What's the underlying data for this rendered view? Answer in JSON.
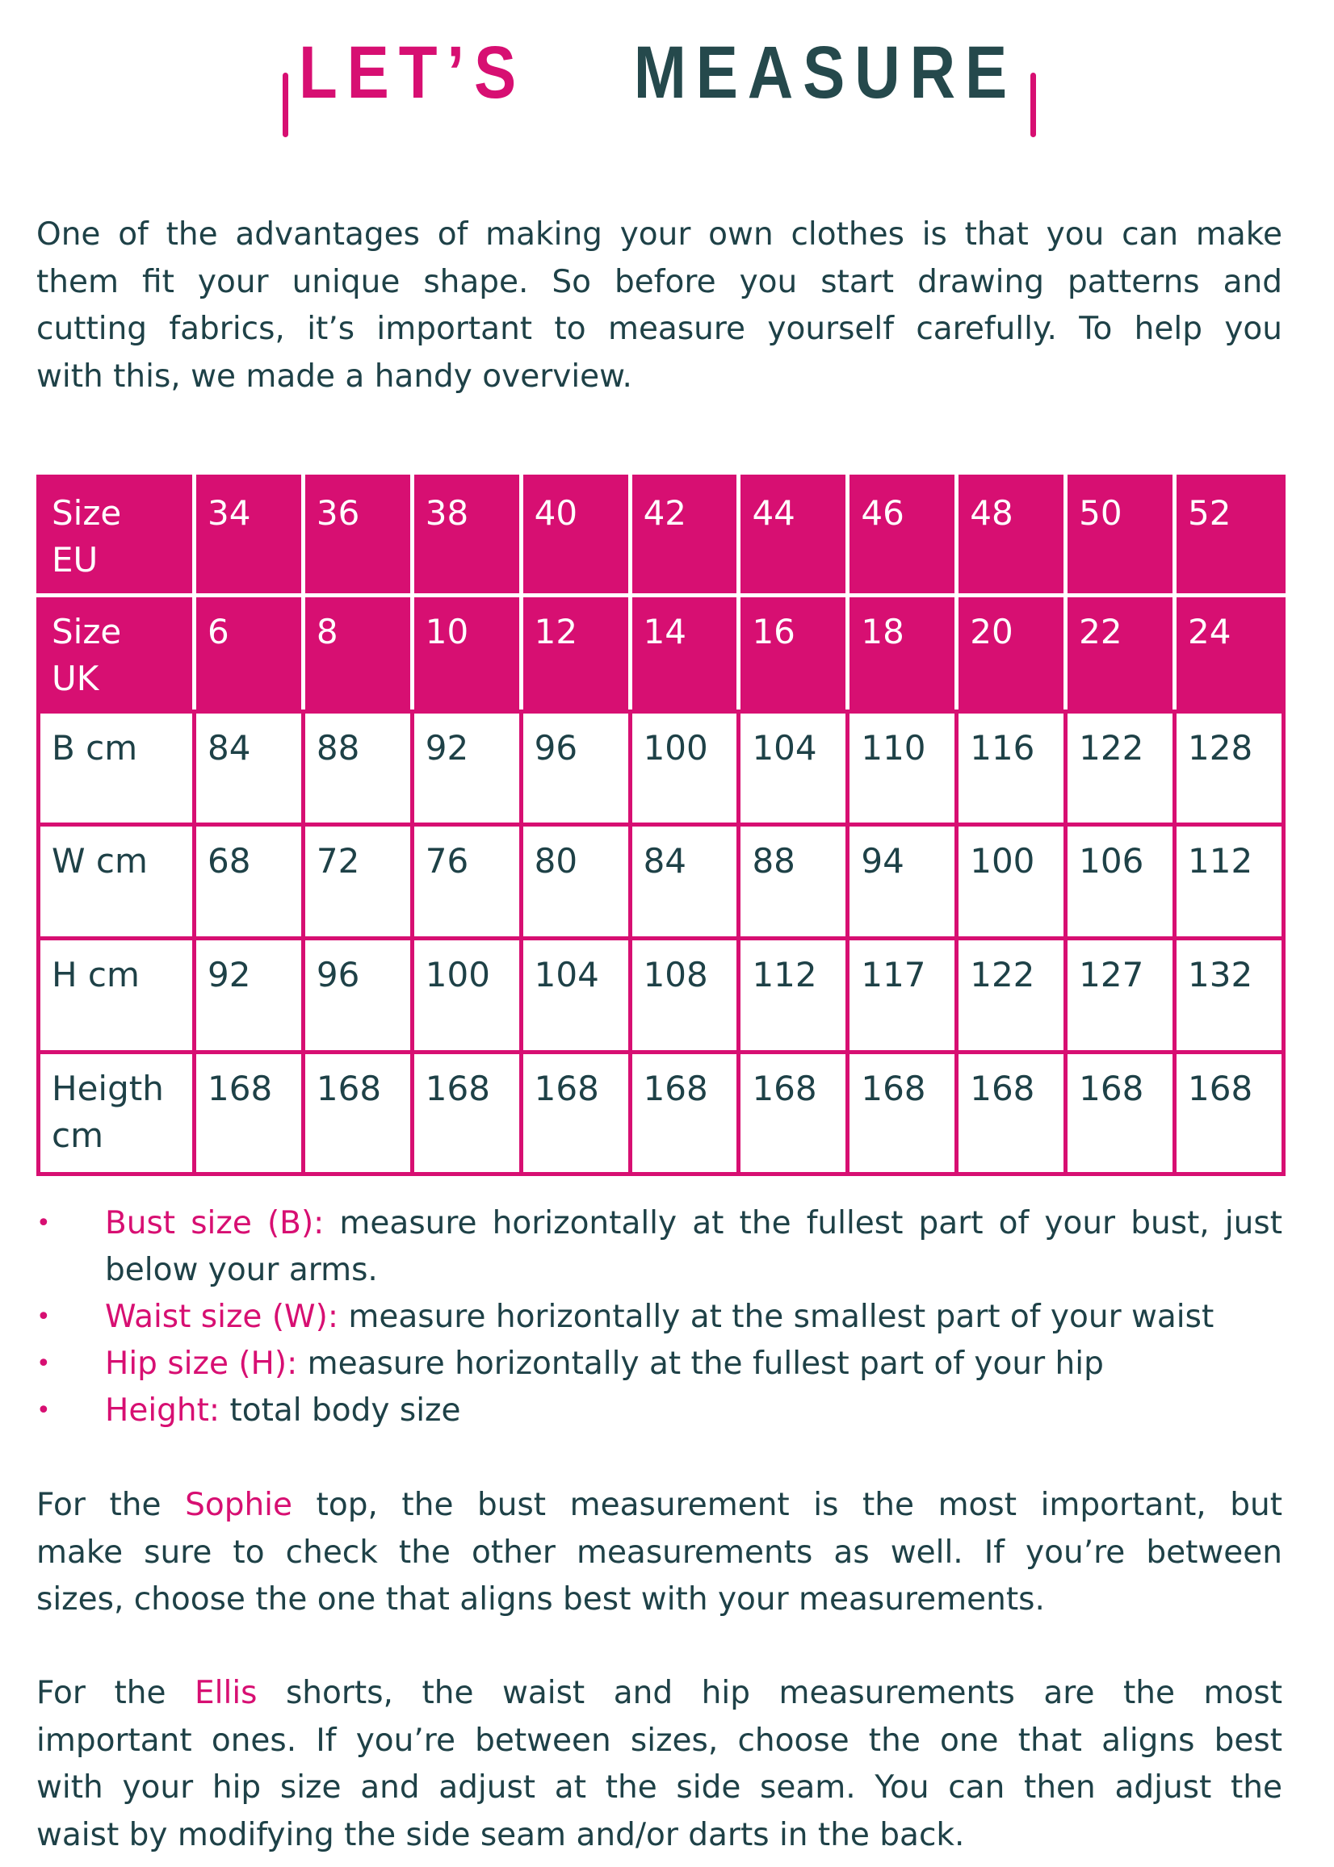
{
  "colors": {
    "accent": "#d70f72",
    "text": "#1e4147",
    "title_dark": "#25494c"
  },
  "title": {
    "part1": "LET’S",
    "part2": "MEASURE"
  },
  "intro": [
    [
      {
        "t": "One of the advantages of making your own clothes is that you can make"
      }
    ],
    [
      {
        "t": "them fit your unique shape. So before you start drawing patterns and"
      }
    ],
    [
      {
        "t": "cutting fabrics, it’s important to measure yourself carefully. To help you"
      }
    ],
    [
      {
        "t": "with this, we made a handy overview."
      }
    ]
  ],
  "table": {
    "rows": [
      {
        "head": true,
        "label": [
          "Size",
          "EU"
        ],
        "values": [
          "34",
          "36",
          "38",
          "40",
          "42",
          "44",
          "46",
          "48",
          "50",
          "52"
        ]
      },
      {
        "head": true,
        "label": [
          "Size",
          "UK"
        ],
        "values": [
          "6",
          "8",
          "10",
          "12",
          "14",
          "16",
          "18",
          "20",
          "22",
          "24"
        ]
      },
      {
        "head": false,
        "label": [
          "B cm"
        ],
        "values": [
          "84",
          "88",
          "92",
          "96",
          "100",
          "104",
          "110",
          "116",
          "122",
          "128"
        ]
      },
      {
        "head": false,
        "label": [
          "W cm"
        ],
        "values": [
          "68",
          "72",
          "76",
          "80",
          "84",
          "88",
          "94",
          "100",
          "106",
          "112"
        ]
      },
      {
        "head": false,
        "label": [
          "H cm"
        ],
        "values": [
          "92",
          "96",
          "100",
          "104",
          "108",
          "112",
          "117",
          "122",
          "127",
          "132"
        ]
      },
      {
        "head": false,
        "label": [
          "Heigth",
          "cm"
        ],
        "values": [
          "168",
          "168",
          "168",
          "168",
          "168",
          "168",
          "168",
          "168",
          "168",
          "168"
        ]
      }
    ]
  },
  "bullets": [
    {
      "lines": [
        [
          {
            "t": "Bust size (B):",
            "a": true
          },
          {
            "t": " measure horizontally at the fullest part of your bust, just"
          }
        ],
        [
          {
            "t": "below your arms."
          }
        ]
      ]
    },
    {
      "lines": [
        [
          {
            "t": "Waist size (W):",
            "a": true
          },
          {
            "t": " measure horizontally at the smallest part of your waist"
          }
        ]
      ]
    },
    {
      "lines": [
        [
          {
            "t": "Hip size (H):",
            "a": true
          },
          {
            "t": " measure horizontally at the fullest part of your hip"
          }
        ]
      ]
    },
    {
      "lines": [
        [
          {
            "t": "Height:",
            "a": true
          },
          {
            "t": " total body size"
          }
        ]
      ]
    }
  ],
  "para2": [
    [
      {
        "t": "For the "
      },
      {
        "t": "Sophie",
        "a": true
      },
      {
        "t": " top, the bust measurement is the most important, but"
      }
    ],
    [
      {
        "t": "make sure to check the other measurements as well. If you’re between"
      }
    ],
    [
      {
        "t": "sizes, choose the one that aligns best with your measurements."
      }
    ]
  ],
  "para3": [
    [
      {
        "t": "For the "
      },
      {
        "t": "Ellis",
        "a": true
      },
      {
        "t": " shorts, the waist and hip measurements are the most"
      }
    ],
    [
      {
        "t": "important ones. If you’re between sizes, choose the one that aligns best"
      }
    ],
    [
      {
        "t": "with your hip size and adjust at the side seam. You can then adjust the"
      }
    ],
    [
      {
        "t": "waist by modifying the side seam and/or darts in the back."
      }
    ]
  ]
}
